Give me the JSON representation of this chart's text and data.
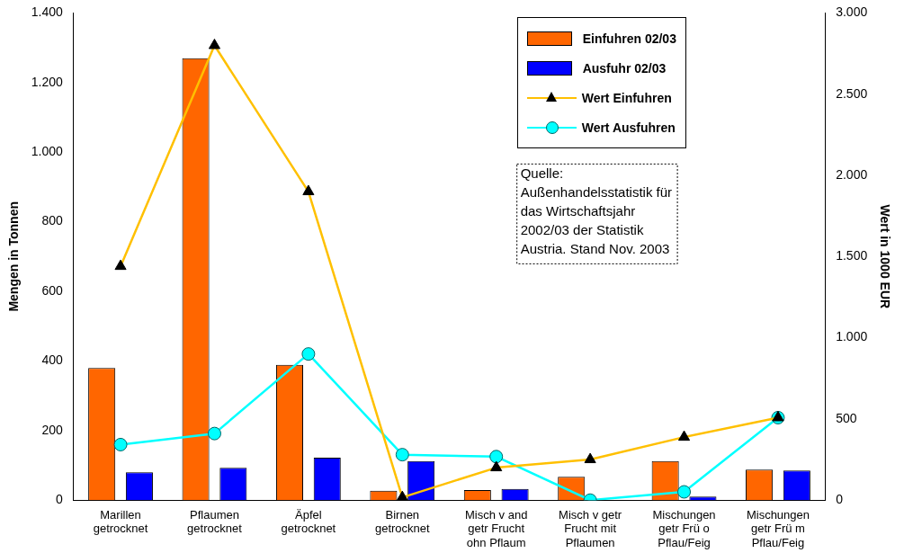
{
  "chart_data": {
    "type": "bar",
    "ylabel": "Mengen in Tonnen",
    "y2label": "Wert in 1000 EUR",
    "categories": [
      "Marillen getrocknet",
      "Pflaumen getrocknet",
      "Äpfel getrocknet",
      "Birnen getrocknet",
      "Misch v and getr Frucht ohn Pflaum",
      "Misch v getr Frucht mit Pflaumen",
      "Mischungen getr Frü o Pflau/Feig",
      "Mischungen getr Frü m Pflau/Feig"
    ],
    "series": [
      {
        "name": "Einfuhren 02/03",
        "color": "#ff6600",
        "values": [
          380,
          1270,
          389,
          27,
          29,
          67,
          112,
          88
        ]
      },
      {
        "name": "Ausfuhr 02/03",
        "color": "#0000ff",
        "values": [
          80,
          93,
          122,
          112,
          32,
          0,
          10,
          85
        ]
      },
      {
        "name": "Wert Einfuhren",
        "type": "line",
        "axis": "y2",
        "color": "#ffc000",
        "marker": "triangle",
        "values": [
          1440,
          2800,
          1900,
          17,
          200,
          250,
          388,
          508
        ]
      },
      {
        "name": "Wert Ausfuhren",
        "type": "line",
        "axis": "y2",
        "color": "#00ffff",
        "marker": "circle",
        "values": [
          342,
          410,
          900,
          280,
          268,
          0,
          51,
          508
        ]
      }
    ],
    "ylim": [
      0,
      1400
    ],
    "yticks": [
      {
        "value": 0,
        "label": "0"
      },
      {
        "value": 200,
        "label": "200"
      },
      {
        "value": 400,
        "label": "400"
      },
      {
        "value": 600,
        "label": "600"
      },
      {
        "value": 800,
        "label": "800"
      },
      {
        "value": 1000,
        "label": "1.000"
      },
      {
        "value": 1200,
        "label": "1.200"
      },
      {
        "value": 1400,
        "label": "1.400"
      }
    ],
    "y2lim": [
      0,
      3000
    ],
    "y2ticks": [
      {
        "value": 0,
        "label": "0"
      },
      {
        "value": 500,
        "label": "500"
      },
      {
        "value": 1000,
        "label": "1.000"
      },
      {
        "value": 1500,
        "label": "1.500"
      },
      {
        "value": 2000,
        "label": "2.000"
      },
      {
        "value": 2500,
        "label": "2.500"
      },
      {
        "value": 3000,
        "label": "3.000"
      }
    ],
    "annotations": [
      "Quelle: Außenhandelsstatistik für das Wirtschaftsjahr 2002/03 der Statistik Austria. Stand Nov. 2003"
    ],
    "legend": "top right",
    "grid": false
  }
}
